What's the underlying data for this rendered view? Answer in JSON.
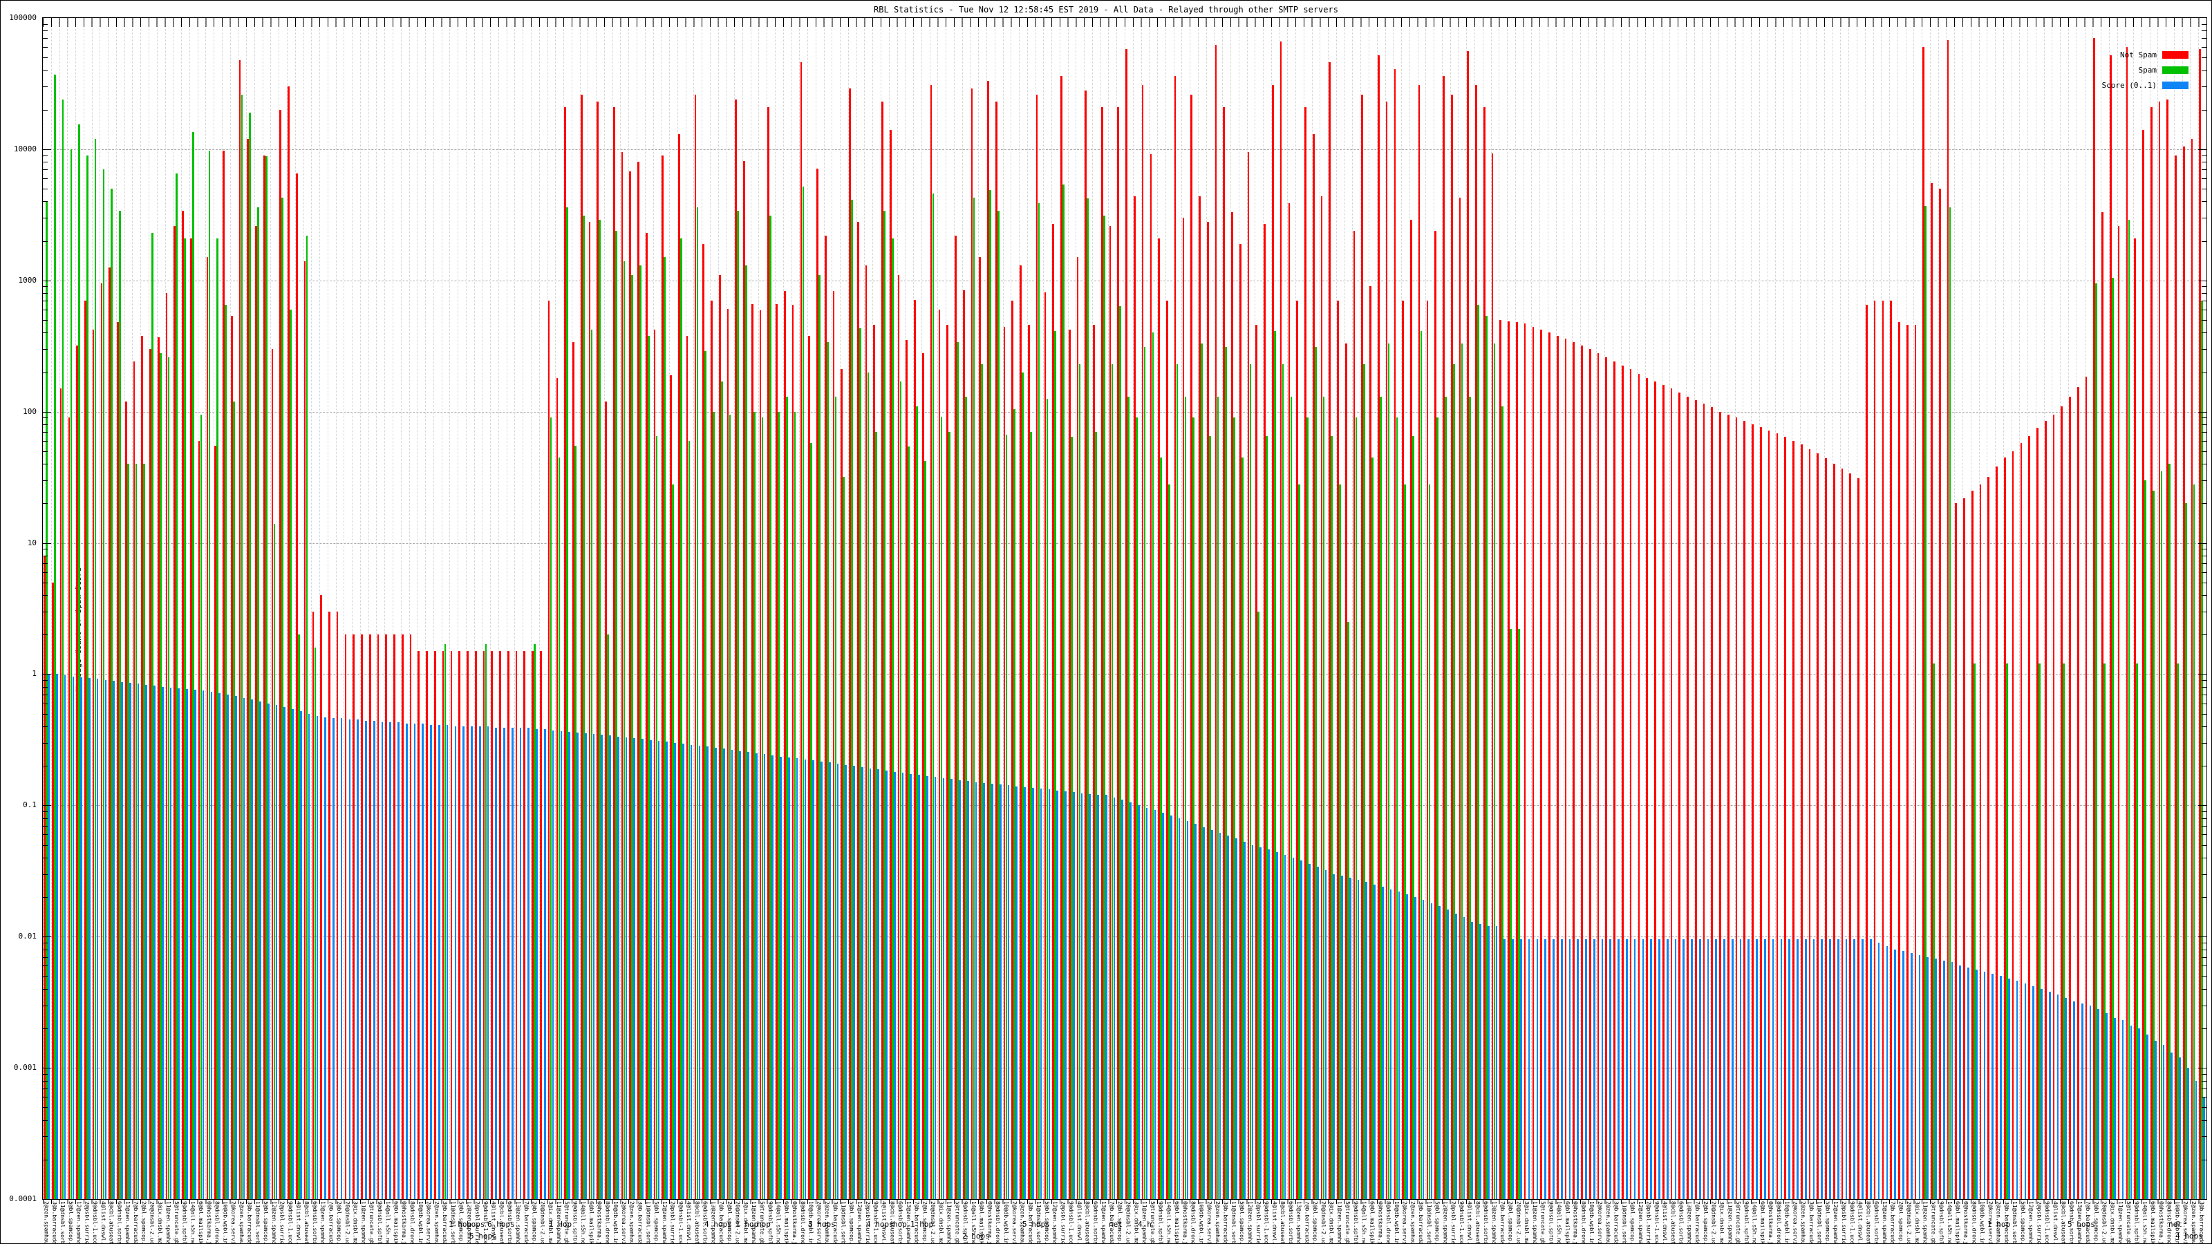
{
  "title": "RBL Statistics - Tue Nov 12 12:58:45 EST 2019 - All Data - Relayed through other SMTP servers",
  "y_axis": {
    "label": "Message Count or Spam Score",
    "tick_labels": [
      "100000",
      "10000",
      "1000",
      "100",
      "10",
      "1",
      "0.1",
      "0.01",
      "0.001",
      "0.0001"
    ],
    "min": 0.0001,
    "max": 100000,
    "scale": "log"
  },
  "legend": [
    {
      "label": "Not Spam",
      "color": "#ff0000"
    },
    {
      "label": "Spam",
      "color": "#00c000"
    },
    {
      "label": "Score (0..1)",
      "color": "#0f85f5"
    }
  ],
  "colors": {
    "not_spam": "#ff0000",
    "spam": "#00c000",
    "score": "#0f85f5",
    "grid": "#a8a8a8"
  },
  "x_axis": {
    "labels_illegible": true,
    "texture_labels": [
      "2@zen.spamhaus.org 1 hop",
      "3@b.barracudacentral.org 2 hops",
      "11@dnsbl.sorbs.net 1 hop",
      "5@bl.spamcop.net 3 hops",
      "12@zen.spamhaus.org 4 hops",
      "2@psbl.surriel.com 1 hop",
      "9@dnsbl-1.uceprotect.net 5 hops",
      "4@list.dnswl.org 2 hops",
      "8@cbl.abuseat.org 1 hop",
      "6@dnsbl.sorbs.net 6 hops",
      "13@zen.spamhaus.org 2 hops",
      "7@b.barracudacentral.org 1 hop",
      "2@bl.spamcop.net 5 hops",
      "20@dnsbl-2.uceprotect.net 1 hop",
      "3@ix.dnsbl.manitu.net 3 hops",
      "11@zen.spamhaus.org net",
      "5@truncate.gbudb.net 4 hops",
      "9@dnsbl.spfbl.net 1 hop",
      "14@all.s5h.net 2 hops",
      "6@bl.mailspike.net 4 hops",
      "0@hostkarma.junkemailfilter.com 1 hop",
      "8@dnsbl.dronebl.org 3 hops",
      "10@db.wpbl.info 5 hops",
      "2@korea.services.net 2 hops"
    ],
    "readable_fragments": [
      {
        "text": "1 hop",
        "x": 648,
        "row": 1
      },
      {
        "text": "hops",
        "x": 674,
        "row": 1
      },
      {
        "text": "6 hops",
        "x": 704,
        "row": 1
      },
      {
        "text": "5 hops",
        "x": 678,
        "row": 2
      },
      {
        "text": "1 Hop",
        "x": 793,
        "row": 1
      },
      {
        "text": "4 hops",
        "x": 1018,
        "row": 1
      },
      {
        "text": "1 hop",
        "x": 1063,
        "row": 1
      },
      {
        "text": "hop",
        "x": 1094,
        "row": 1
      },
      {
        "text": "3 hops",
        "x": 1168,
        "row": 1
      },
      {
        "text": "4 hops",
        "x": 1252,
        "row": 1
      },
      {
        "text": "hop",
        "x": 1291,
        "row": 1
      },
      {
        "text": "1 hop",
        "x": 1316,
        "row": 1
      },
      {
        "text": "2 hops",
        "x": 1391,
        "row": 2
      },
      {
        "text": "5 hops",
        "x": 1478,
        "row": 1
      },
      {
        "text": "net",
        "x": 1603,
        "row": 1
      },
      {
        "text": "4 h",
        "x": 1645,
        "row": 1
      },
      {
        "text": "1 hop",
        "x": 2874,
        "row": 1
      },
      {
        "text": "5 hops",
        "x": 2990,
        "row": 1
      },
      {
        "text": "net",
        "x": 3136,
        "row": 1
      },
      {
        "text": "4 hops",
        "x": 3146,
        "row": 2
      }
    ]
  },
  "chart_data": {
    "type": "bar",
    "scale": "log",
    "ylim": [
      0.0001,
      100000
    ],
    "grid": true,
    "legend_position": "top-right",
    "series_names": [
      "Not Spam",
      "Spam",
      "Score (0..1)"
    ],
    "sections": [
      {
        "name": "green-wall",
        "red": [
          8,
          5,
          150,
          90,
          320,
          700,
          420,
          950,
          1250,
          480,
          120,
          240,
          380,
          300
        ],
        "green": [
          4000,
          37000,
          24000,
          10000,
          15500,
          9000,
          12000,
          7000,
          5000,
          3400,
          40,
          40,
          40,
          2300
        ],
        "blue": [
          1.0,
          1.0,
          0.98,
          0.96,
          0.95,
          0.93,
          0.92,
          0.9,
          0.89,
          0.87,
          0.86,
          0.85,
          0.83,
          0.82
        ]
      },
      {
        "name": "mixed-spikes",
        "red": [
          370,
          800,
          2600,
          3400,
          2100,
          60,
          1500,
          55,
          9800,
          540,
          48000,
          12000,
          2600,
          9000,
          300,
          20000,
          30000,
          6500,
          1400,
          3
        ],
        "green": [
          280,
          260,
          6500,
          2100,
          13500,
          95,
          9800,
          2100,
          650,
          120,
          26000,
          19000,
          3600,
          8800,
          14,
          4300,
          600,
          2,
          2200,
          1.6
        ],
        "blue": [
          0.8,
          0.79,
          0.78,
          0.77,
          0.76,
          0.75,
          0.73,
          0.72,
          0.7,
          0.68,
          0.66,
          0.64,
          0.62,
          0.6,
          0.58,
          0.56,
          0.54,
          0.52,
          0.5,
          0.48
        ]
      },
      {
        "name": "low-red-shelf",
        "red": [
          4,
          3,
          3,
          2,
          2,
          2,
          2,
          2,
          2,
          2,
          2,
          2,
          1.5,
          1.5,
          1.5,
          1.5,
          1.5,
          1.5,
          1.5,
          1.5,
          1.5,
          1.5,
          1.5,
          1.5,
          1.5,
          1.5,
          1.5,
          1.5
        ],
        "green": [
          null,
          null,
          null,
          null,
          null,
          null,
          null,
          null,
          null,
          null,
          null,
          null,
          null,
          null,
          null,
          1.7,
          null,
          null,
          null,
          null,
          1.7,
          null,
          null,
          null,
          null,
          null,
          1.7,
          null
        ],
        "blue": [
          0.47,
          0.46,
          0.46,
          0.45,
          0.45,
          0.44,
          0.44,
          0.43,
          0.43,
          0.43,
          0.42,
          0.42,
          0.42,
          0.41,
          0.41,
          0.41,
          0.4,
          0.4,
          0.4,
          0.4,
          0.4,
          0.39,
          0.39,
          0.39,
          0.39,
          0.39,
          0.38,
          0.38
        ]
      },
      {
        "name": "tall-mixed-1",
        "red": [
          700,
          180,
          21000,
          340,
          26000,
          2800,
          23000,
          120,
          21000,
          9500,
          6800,
          8000,
          2300,
          420,
          9000,
          190,
          13000,
          380,
          26000,
          1900,
          700,
          1100,
          610,
          24000,
          8100,
          660,
          590,
          21000,
          660,
          830,
          650,
          46000,
          380,
          7100,
          2200,
          830,
          210,
          29000,
          2800,
          1300,
          460,
          23000,
          14000,
          1100,
          350,
          710,
          280,
          31000,
          600,
          460,
          2200,
          840,
          29000,
          1500,
          33000,
          23000,
          440,
          700,
          1300,
          460,
          26000,
          810,
          2700,
          36000,
          420,
          1500,
          28000,
          460,
          21000
        ],
        "green": [
          90,
          45,
          3600,
          55,
          3100,
          420,
          2900,
          2,
          2400,
          1400,
          1100,
          1300,
          380,
          65,
          1500,
          28,
          2100,
          60,
          3600,
          290,
          100,
          170,
          95,
          3400,
          1300,
          100,
          90,
          3100,
          100,
          130,
          100,
          5200,
          58,
          1100,
          340,
          130,
          32,
          4100,
          430,
          200,
          70,
          3400,
          2100,
          170,
          54,
          110,
          42,
          4600,
          92,
          70,
          340,
          130,
          4300,
          230,
          4900,
          3400,
          67,
          105,
          200,
          70,
          3900,
          125,
          410,
          5400,
          64,
          230,
          4200,
          70,
          3100
        ],
        "blue": [
          0.37,
          0.366,
          0.362,
          0.358,
          0.354,
          0.35,
          0.345,
          0.34,
          0.335,
          0.33,
          0.325,
          0.32,
          0.315,
          0.31,
          0.305,
          0.3,
          0.295,
          0.29,
          0.285,
          0.28,
          0.275,
          0.27,
          0.265,
          0.26,
          0.255,
          0.25,
          0.245,
          0.24,
          0.236,
          0.232,
          0.228,
          0.224,
          0.22,
          0.216,
          0.212,
          0.208,
          0.204,
          0.2,
          0.196,
          0.192,
          0.188,
          0.184,
          0.18,
          0.177,
          0.174,
          0.171,
          0.168,
          0.165,
          0.162,
          0.159,
          0.156,
          0.153,
          0.15,
          0.148,
          0.146,
          0.144,
          0.142,
          0.14,
          0.138,
          0.136,
          0.134,
          0.132,
          0.13,
          0.128,
          0.126,
          0.124,
          0.122,
          0.121,
          0.12
        ]
      },
      {
        "name": "tall-mixed-2",
        "red": [
          2600,
          21000,
          58000,
          4400,
          31000,
          9200,
          2100,
          700,
          36000,
          3000,
          26000,
          4400,
          2800,
          62000,
          21000,
          3300,
          1900,
          9500,
          460,
          2700,
          31000,
          66000,
          3900,
          700,
          21000,
          13000,
          4400,
          46000,
          700,
          330,
          2400,
          26000,
          910,
          52000,
          23000,
          41000,
          700,
          2900,
          31000,
          700,
          2400,
          36000,
          26000,
          4300,
          56000,
          31000,
          21000,
          9300
        ],
        "green": [
          230,
          640,
          130,
          90,
          310,
          400,
          45,
          28,
          230,
          130,
          90,
          330,
          65,
          130,
          310,
          90,
          45,
          230,
          3,
          65,
          410,
          230,
          130,
          28,
          90,
          310,
          130,
          65,
          28,
          2.5,
          90,
          230,
          45,
          130,
          330,
          90,
          28,
          65,
          410,
          28,
          90,
          130,
          230,
          330,
          130,
          650,
          540,
          330
        ],
        "blue": [
          0.115,
          0.11,
          0.105,
          0.1,
          0.096,
          0.092,
          0.088,
          0.084,
          0.08,
          0.076,
          0.072,
          0.068,
          0.065,
          0.062,
          0.059,
          0.056,
          0.053,
          0.05,
          0.048,
          0.046,
          0.044,
          0.042,
          0.04,
          0.038,
          0.036,
          0.034,
          0.032,
          0.03,
          0.029,
          0.028,
          0.027,
          0.026,
          0.025,
          0.024,
          0.023,
          0.022,
          0.021,
          0.02,
          0.019,
          0.018,
          0.017,
          0.016,
          0.015,
          0.014,
          0.013,
          0.0125,
          0.012,
          0.012
        ]
      },
      {
        "name": "red-staircase-down",
        "red": [
          500,
          490,
          480,
          470,
          440,
          420,
          400,
          380,
          360,
          340,
          320,
          300,
          280,
          260,
          240,
          225,
          210,
          195,
          180,
          170,
          160,
          150,
          140,
          130,
          122,
          115,
          108,
          100,
          95,
          90,
          85,
          80,
          76,
          72,
          68,
          64,
          60,
          56,
          52,
          48,
          44,
          40,
          37,
          34,
          31
        ],
        "green": [
          110,
          2.2,
          2.2,
          null,
          null,
          null,
          null,
          null,
          null,
          null,
          null,
          null,
          null,
          null,
          null,
          null,
          null,
          null,
          null,
          null,
          null,
          null,
          null,
          null,
          null,
          null,
          null,
          null,
          null,
          null,
          null,
          null,
          null,
          null,
          null,
          null,
          null,
          null,
          null,
          null,
          null,
          null,
          null,
          null,
          null
        ],
        "blue": [
          0.0095,
          0.0095,
          0.0095,
          0.0095,
          0.0095,
          0.0095,
          0.0095,
          0.0095,
          0.0095,
          0.0095,
          0.0095,
          0.0095,
          0.0095,
          0.0095,
          0.0095,
          0.0095,
          0.0095,
          0.0095,
          0.0095,
          0.0095,
          0.0095,
          0.0095,
          0.0095,
          0.0095,
          0.0095,
          0.0095,
          0.0095,
          0.0095,
          0.0095,
          0.0095,
          0.0095,
          0.0095,
          0.0095,
          0.0095,
          0.0095,
          0.0095,
          0.0095,
          0.0095,
          0.0095,
          0.0095,
          0.0095,
          0.0095,
          0.0095,
          0.0095,
          0.0095
        ]
      },
      {
        "name": "mid-red-shelf",
        "red": [
          650,
          700,
          700,
          700,
          480,
          460,
          460
        ],
        "green": [
          null,
          null,
          null,
          null,
          null,
          null,
          null
        ],
        "blue": [
          0.0095,
          0.009,
          0.0085,
          0.008,
          0.0078,
          0.0075,
          0.0072
        ]
      },
      {
        "name": "right-spikes-and-ramp",
        "red": [
          60000,
          5500,
          5000,
          68000,
          20,
          22,
          25,
          28,
          32,
          38,
          45,
          50,
          58,
          65,
          75,
          85,
          95,
          110,
          130,
          155,
          185,
          70000,
          3300,
          52000,
          2600,
          60000,
          2100,
          14000,
          21000,
          23000,
          24000,
          9000,
          10500,
          12000,
          58000
        ],
        "green": [
          3700,
          1.2,
          null,
          3600,
          null,
          null,
          1.2,
          null,
          null,
          null,
          1.2,
          null,
          null,
          null,
          1.2,
          null,
          null,
          1.2,
          null,
          null,
          null,
          950,
          1.2,
          1050,
          null,
          2900,
          1.2,
          30,
          25,
          35,
          40,
          1.2,
          20,
          28,
          700
        ],
        "blue": [
          0.007,
          0.0068,
          0.0066,
          0.0064,
          0.006,
          0.0058,
          0.0056,
          0.0054,
          0.0052,
          0.005,
          0.0048,
          0.0046,
          0.0044,
          0.0042,
          0.004,
          0.0038,
          0.0036,
          0.0034,
          0.0032,
          0.0031,
          0.003,
          0.0028,
          0.0026,
          0.0024,
          0.0023,
          0.0021,
          0.002,
          0.0018,
          0.0016,
          0.0015,
          0.0013,
          0.0012,
          0.001,
          0.0008,
          0.0006
        ]
      }
    ]
  }
}
